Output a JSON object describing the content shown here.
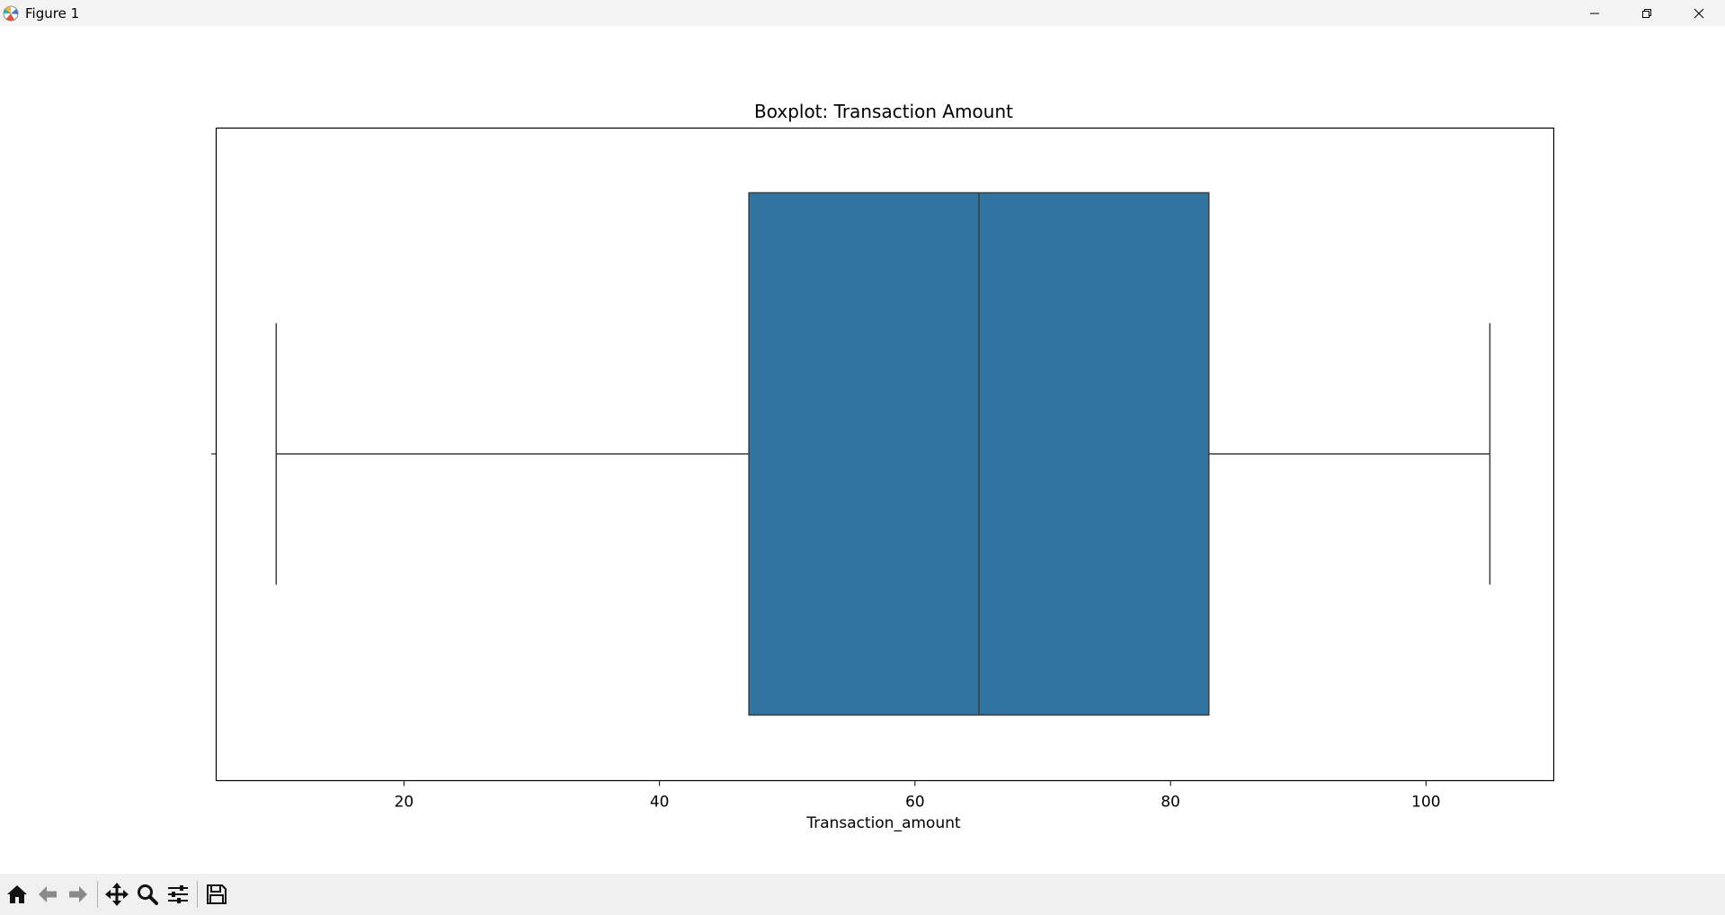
{
  "window": {
    "title": "Figure 1"
  },
  "colors": {
    "box_fill": "#3274a1",
    "line": "#3d3d3d",
    "axis": "#000000"
  },
  "toolbar": {
    "icons": [
      "home-icon",
      "back-arrow-icon",
      "forward-arrow-icon",
      "pan-icon",
      "zoom-icon",
      "configure-subplots-icon",
      "save-icon"
    ]
  },
  "chart_data": {
    "type": "boxplot",
    "title": "Boxplot: Transaction Amount",
    "xlabel": "Transaction_amount",
    "ylabel": "",
    "orientation": "horizontal",
    "xlim": [
      5.3,
      110
    ],
    "x_ticks": [
      20,
      40,
      60,
      80,
      100
    ],
    "grid": false,
    "box": {
      "whisker_low": 10,
      "q1": 47,
      "median": 65,
      "q3": 83,
      "whisker_high": 105
    }
  }
}
